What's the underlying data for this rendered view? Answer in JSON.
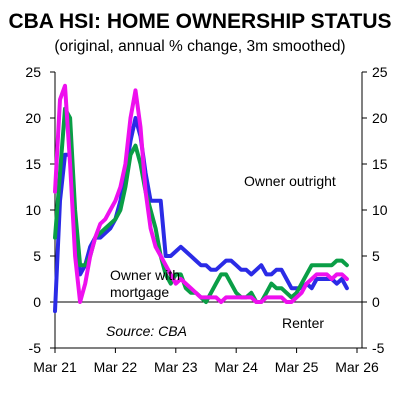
{
  "chart_data": {
    "type": "line",
    "title": "CBA HSI: HOME OWNERSHIP STATUS",
    "subtitle": "(original, annual % change, 3m smoothed)",
    "source": "Source: CBA",
    "ylim": [
      -5,
      25
    ],
    "yticks": [
      "25",
      "20",
      "15",
      "10",
      "5",
      "0",
      "-5"
    ],
    "ytick_values": [
      25,
      20,
      15,
      10,
      5,
      0,
      -5
    ],
    "xlim": [
      2021.167,
      2026.25
    ],
    "xticks": [
      "Mar 21",
      "Mar 22",
      "Mar 23",
      "Mar 24",
      "Mar 25",
      "Mar 26"
    ],
    "xtick_values": [
      2021.167,
      2022.167,
      2023.167,
      2024.167,
      2025.167,
      2026.167
    ],
    "grid": false,
    "series": [
      {
        "name": "Owner outright",
        "color": "#2b2be6",
        "x": [
          2021.167,
          2021.25,
          2021.333,
          2021.417,
          2021.5,
          2021.583,
          2021.667,
          2021.75,
          2021.833,
          2021.917,
          2022.0,
          2022.083,
          2022.167,
          2022.25,
          2022.333,
          2022.417,
          2022.5,
          2022.583,
          2022.667,
          2022.75,
          2022.833,
          2022.917,
          2023.0,
          2023.083,
          2023.167,
          2023.25,
          2023.333,
          2023.417,
          2023.5,
          2023.583,
          2023.667,
          2023.75,
          2023.833,
          2023.917,
          2024.0,
          2024.083,
          2024.167,
          2024.25,
          2024.333,
          2024.417,
          2024.5,
          2024.583,
          2024.667,
          2024.75,
          2024.833,
          2024.917,
          2025.0,
          2025.083,
          2025.167,
          2025.25,
          2025.333,
          2025.417,
          2025.5,
          2025.583,
          2025.667,
          2025.75,
          2025.833,
          2025.917,
          2026.0
        ],
        "values": [
          -1,
          11,
          16,
          16,
          9,
          3,
          4,
          6,
          7,
          7,
          7.5,
          8,
          9,
          11,
          14,
          17.5,
          20,
          18,
          14,
          11,
          11,
          11,
          5,
          5,
          5.5,
          6,
          5.5,
          5,
          4.5,
          4,
          4,
          3.5,
          3.5,
          4,
          4.5,
          4.5,
          4,
          3.5,
          3.5,
          3,
          3.5,
          4,
          3,
          3,
          3.5,
          3.5,
          2.5,
          1.5,
          1.5,
          1.5,
          2,
          1.5,
          2.5,
          2.5,
          2.5,
          2.5,
          2,
          2.5,
          1.5
        ]
      },
      {
        "name": "Owner with mortgage",
        "color": "#0a9e46",
        "x": [
          2021.167,
          2021.25,
          2021.333,
          2021.417,
          2021.5,
          2021.583,
          2021.667,
          2021.75,
          2021.833,
          2021.917,
          2022.0,
          2022.083,
          2022.167,
          2022.25,
          2022.333,
          2022.417,
          2022.5,
          2022.583,
          2022.667,
          2022.75,
          2022.833,
          2022.917,
          2023.0,
          2023.083,
          2023.167,
          2023.25,
          2023.333,
          2023.417,
          2023.5,
          2023.583,
          2023.667,
          2023.75,
          2023.833,
          2023.917,
          2024.0,
          2024.083,
          2024.167,
          2024.25,
          2024.333,
          2024.417,
          2024.5,
          2024.583,
          2024.667,
          2024.75,
          2024.833,
          2024.917,
          2025.0,
          2025.083,
          2025.167,
          2025.25,
          2025.333,
          2025.417,
          2025.5,
          2025.583,
          2025.667,
          2025.75,
          2025.833,
          2025.917,
          2026.0
        ],
        "values": [
          7,
          14,
          21,
          20,
          10,
          4,
          4,
          5,
          7,
          7.5,
          8,
          8.5,
          9,
          10,
          12.5,
          16,
          17,
          15,
          12,
          10,
          8,
          5,
          3,
          2,
          3,
          3,
          1.5,
          1,
          1,
          0.5,
          0,
          1,
          2,
          3,
          3,
          2,
          1,
          0.5,
          0.5,
          1,
          0,
          0,
          1,
          2,
          1.5,
          1.5,
          1,
          0.5,
          1,
          2,
          3,
          4,
          4,
          4,
          4,
          4,
          4.5,
          4.5,
          4
        ]
      },
      {
        "name": "Renter",
        "color": "#ee10ee",
        "x": [
          2021.167,
          2021.25,
          2021.333,
          2021.417,
          2021.5,
          2021.583,
          2021.667,
          2021.75,
          2021.833,
          2021.917,
          2022.0,
          2022.083,
          2022.167,
          2022.25,
          2022.333,
          2022.417,
          2022.5,
          2022.583,
          2022.667,
          2022.75,
          2022.833,
          2022.917,
          2023.0,
          2023.083,
          2023.167,
          2023.25,
          2023.333,
          2023.417,
          2023.5,
          2023.583,
          2023.667,
          2023.75,
          2023.833,
          2023.917,
          2024.0,
          2024.083,
          2024.167,
          2024.25,
          2024.333,
          2024.417,
          2024.5,
          2024.583,
          2024.667,
          2024.75,
          2024.833,
          2024.917,
          2025.0,
          2025.083,
          2025.167,
          2025.25,
          2025.333,
          2025.417,
          2025.5,
          2025.583,
          2025.667,
          2025.75,
          2025.833,
          2025.917,
          2026.0
        ],
        "values": [
          12,
          22,
          23.5,
          15,
          5,
          0,
          2,
          5,
          7,
          8.5,
          9,
          10,
          11,
          12.5,
          15,
          20,
          23,
          19,
          12,
          8,
          6,
          5,
          4,
          3,
          2,
          2.5,
          2,
          1.5,
          1,
          0.5,
          0.5,
          0.5,
          0.5,
          0,
          0.5,
          0.5,
          0.5,
          0.5,
          0.5,
          0.5,
          0,
          0,
          0.5,
          0.5,
          0.5,
          0.5,
          0,
          0,
          0.5,
          1,
          2,
          2.5,
          3,
          3,
          3,
          2.5,
          3,
          3,
          2.5
        ]
      }
    ],
    "annotations": [
      {
        "text": "Owner outright",
        "color": "#2b2be6"
      },
      {
        "text": "Owner with",
        "color": "#0a9e46"
      },
      {
        "text": "mortgage",
        "color": "#0a9e46"
      },
      {
        "text": "Renter",
        "color": "#ee10ee"
      }
    ]
  }
}
